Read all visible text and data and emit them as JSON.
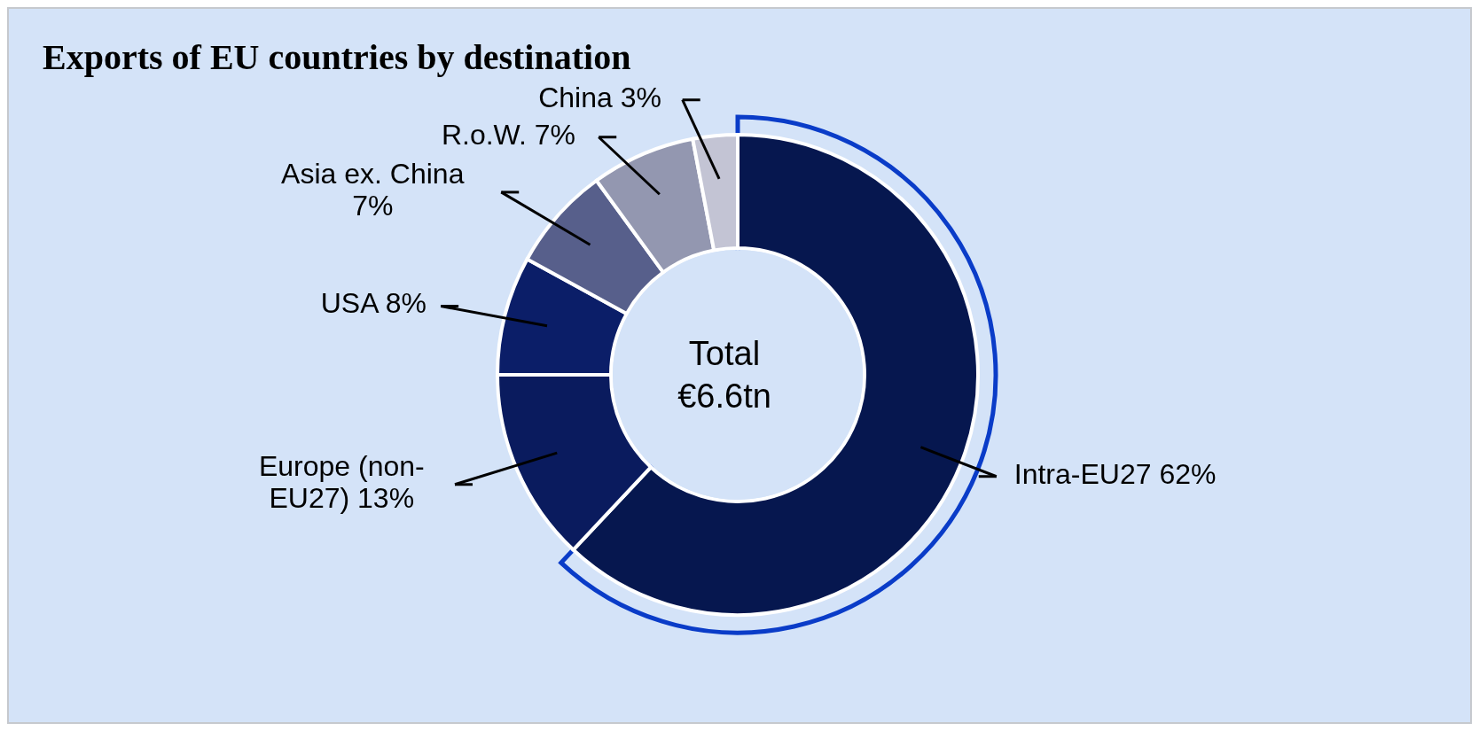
{
  "chart_data": {
    "type": "donut",
    "title": "Exports of EU countries by destination",
    "categories": [
      "Intra-EU27",
      "Europe (non-EU27)",
      "USA",
      "Asia ex. China",
      "R.o.W.",
      "China"
    ],
    "values": [
      62,
      13,
      8,
      7,
      7,
      3
    ],
    "value_labels": [
      "62%",
      "13%",
      "8%",
      "7%",
      "7%",
      "3%"
    ],
    "colors": [
      "#06174f",
      "#0a1b5e",
      "#0b1e68",
      "#575f8b",
      "#9397b0",
      "#c3c4d4"
    ],
    "annotations": [
      "Total €6.6tn"
    ]
  }
}
